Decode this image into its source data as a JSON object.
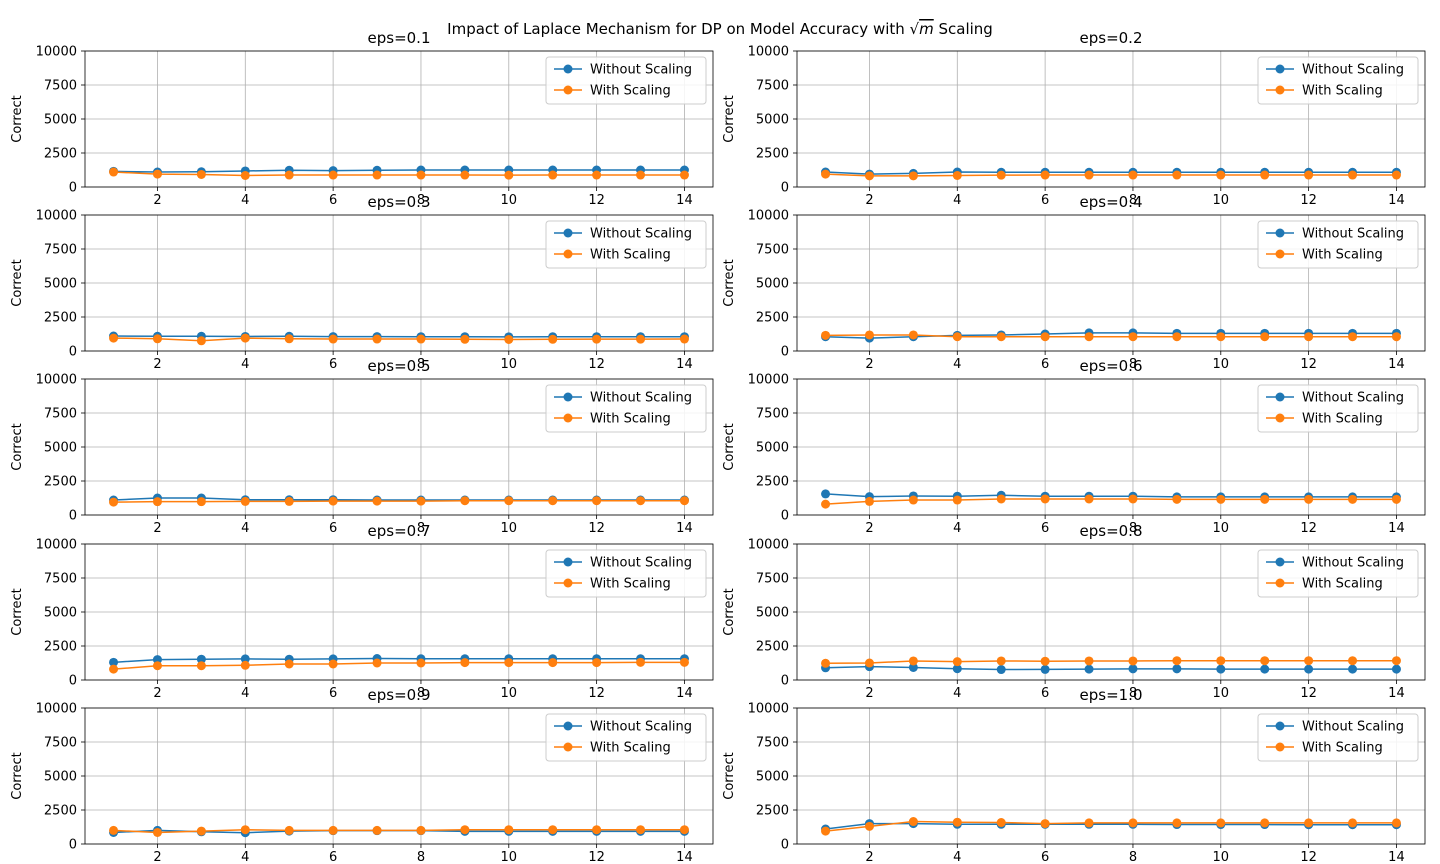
{
  "suptitle": {
    "before": "Impact of Laplace Mechanism for DP on Model Accuracy with ",
    "sqrt_symbol": "√",
    "math_var": "m",
    "after": " Scaling"
  },
  "colors": {
    "without": "#1f77b4",
    "with": "#ff7f0e",
    "grid": "#b0b0b0",
    "axes": "#000000"
  },
  "chart_data": [
    {
      "type": "line",
      "title": "eps=0.1",
      "xlabel": "",
      "ylabel": "Correct",
      "x": [
        1,
        2,
        3,
        4,
        5,
        6,
        7,
        8,
        9,
        10,
        11,
        12,
        13,
        14
      ],
      "xticks": [
        2,
        4,
        6,
        8,
        10,
        12,
        14
      ],
      "xlim": [
        0.35,
        14.65
      ],
      "yticks": [
        0,
        2500,
        5000,
        7500,
        10000
      ],
      "ylim": [
        0,
        10000
      ],
      "grid": true,
      "legend_position": "upper right",
      "series": [
        {
          "name": "Without Scaling",
          "values": [
            1150,
            1100,
            1120,
            1180,
            1230,
            1200,
            1230,
            1250,
            1250,
            1250,
            1250,
            1250,
            1250,
            1250
          ]
        },
        {
          "name": "With Scaling",
          "values": [
            1100,
            950,
            920,
            850,
            880,
            880,
            880,
            880,
            880,
            870,
            880,
            880,
            880,
            880
          ]
        }
      ]
    },
    {
      "type": "line",
      "title": "eps=0.2",
      "xlabel": "",
      "ylabel": "Correct",
      "x": [
        1,
        2,
        3,
        4,
        5,
        6,
        7,
        8,
        9,
        10,
        11,
        12,
        13,
        14
      ],
      "xticks": [
        2,
        4,
        6,
        8,
        10,
        12,
        14
      ],
      "xlim": [
        0.35,
        14.65
      ],
      "yticks": [
        0,
        2500,
        5000,
        7500,
        10000
      ],
      "ylim": [
        0,
        10000
      ],
      "grid": true,
      "legend_position": "upper right",
      "series": [
        {
          "name": "Without Scaling",
          "values": [
            1100,
            950,
            1000,
            1100,
            1080,
            1080,
            1080,
            1080,
            1080,
            1080,
            1080,
            1080,
            1080,
            1080
          ]
        },
        {
          "name": "With Scaling",
          "values": [
            950,
            820,
            820,
            850,
            870,
            880,
            880,
            880,
            880,
            880,
            880,
            880,
            880,
            880
          ]
        }
      ]
    },
    {
      "type": "line",
      "title": "eps=0.3",
      "xlabel": "",
      "ylabel": "Correct",
      "x": [
        1,
        2,
        3,
        4,
        5,
        6,
        7,
        8,
        9,
        10,
        11,
        12,
        13,
        14
      ],
      "xticks": [
        2,
        4,
        6,
        8,
        10,
        12,
        14
      ],
      "xlim": [
        0.35,
        14.65
      ],
      "yticks": [
        0,
        2500,
        5000,
        7500,
        10000
      ],
      "ylim": [
        0,
        10000
      ],
      "grid": true,
      "legend_position": "upper right",
      "series": [
        {
          "name": "Without Scaling",
          "values": [
            1100,
            1080,
            1080,
            1070,
            1080,
            1060,
            1060,
            1050,
            1050,
            1040,
            1050,
            1050,
            1050,
            1050
          ]
        },
        {
          "name": "With Scaling",
          "values": [
            950,
            900,
            750,
            950,
            900,
            880,
            880,
            880,
            860,
            850,
            860,
            870,
            870,
            880
          ]
        }
      ]
    },
    {
      "type": "line",
      "title": "eps=0.4",
      "xlabel": "",
      "ylabel": "Correct",
      "x": [
        1,
        2,
        3,
        4,
        5,
        6,
        7,
        8,
        9,
        10,
        11,
        12,
        13,
        14
      ],
      "xticks": [
        2,
        4,
        6,
        8,
        10,
        12,
        14
      ],
      "xlim": [
        0.35,
        14.65
      ],
      "yticks": [
        0,
        2500,
        5000,
        7500,
        10000
      ],
      "ylim": [
        0,
        10000
      ],
      "grid": true,
      "legend_position": "upper right",
      "series": [
        {
          "name": "Without Scaling",
          "values": [
            1050,
            950,
            1050,
            1150,
            1180,
            1250,
            1330,
            1330,
            1300,
            1300,
            1300,
            1300,
            1300,
            1300
          ]
        },
        {
          "name": "With Scaling",
          "values": [
            1150,
            1180,
            1180,
            1050,
            1050,
            1050,
            1050,
            1050,
            1050,
            1050,
            1050,
            1050,
            1050,
            1050
          ]
        }
      ]
    },
    {
      "type": "line",
      "title": "eps=0.5",
      "xlabel": "",
      "ylabel": "Correct",
      "x": [
        1,
        2,
        3,
        4,
        5,
        6,
        7,
        8,
        9,
        10,
        11,
        12,
        13,
        14
      ],
      "xticks": [
        2,
        4,
        6,
        8,
        10,
        12,
        14
      ],
      "xlim": [
        0.35,
        14.65
      ],
      "yticks": [
        0,
        2500,
        5000,
        7500,
        10000
      ],
      "ylim": [
        0,
        10000
      ],
      "grid": true,
      "legend_position": "upper right",
      "series": [
        {
          "name": "Without Scaling",
          "values": [
            1100,
            1250,
            1250,
            1120,
            1120,
            1120,
            1100,
            1100,
            1100,
            1100,
            1100,
            1100,
            1100,
            1100
          ]
        },
        {
          "name": "With Scaling",
          "values": [
            950,
            980,
            980,
            1000,
            1000,
            1020,
            1020,
            1020,
            1050,
            1050,
            1050,
            1050,
            1050,
            1050
          ]
        }
      ]
    },
    {
      "type": "line",
      "title": "eps=0.6",
      "xlabel": "",
      "ylabel": "Correct",
      "x": [
        1,
        2,
        3,
        4,
        5,
        6,
        7,
        8,
        9,
        10,
        11,
        12,
        13,
        14
      ],
      "xticks": [
        2,
        4,
        6,
        8,
        10,
        12,
        14
      ],
      "xlim": [
        0.35,
        14.65
      ],
      "yticks": [
        0,
        2500,
        5000,
        7500,
        10000
      ],
      "ylim": [
        0,
        10000
      ],
      "grid": true,
      "legend_position": "upper right",
      "series": [
        {
          "name": "Without Scaling",
          "values": [
            1550,
            1350,
            1400,
            1380,
            1450,
            1380,
            1380,
            1380,
            1330,
            1330,
            1330,
            1330,
            1330,
            1330
          ]
        },
        {
          "name": "With Scaling",
          "values": [
            800,
            1000,
            1100,
            1100,
            1180,
            1180,
            1180,
            1180,
            1150,
            1150,
            1150,
            1150,
            1150,
            1150
          ]
        }
      ]
    },
    {
      "type": "line",
      "title": "eps=0.7",
      "xlabel": "",
      "ylabel": "Correct",
      "x": [
        1,
        2,
        3,
        4,
        5,
        6,
        7,
        8,
        9,
        10,
        11,
        12,
        13,
        14
      ],
      "xticks": [
        2,
        4,
        6,
        8,
        10,
        12,
        14
      ],
      "xlim": [
        0.35,
        14.65
      ],
      "yticks": [
        0,
        2500,
        5000,
        7500,
        10000
      ],
      "ylim": [
        0,
        10000
      ],
      "grid": true,
      "legend_position": "upper right",
      "series": [
        {
          "name": "Without Scaling",
          "values": [
            1300,
            1500,
            1530,
            1550,
            1530,
            1550,
            1580,
            1560,
            1560,
            1560,
            1560,
            1560,
            1560,
            1560
          ]
        },
        {
          "name": "With Scaling",
          "values": [
            800,
            1050,
            1050,
            1080,
            1180,
            1180,
            1250,
            1250,
            1280,
            1280,
            1280,
            1280,
            1300,
            1300
          ]
        }
      ]
    },
    {
      "type": "line",
      "title": "eps=0.8",
      "xlabel": "",
      "ylabel": "Correct",
      "x": [
        1,
        2,
        3,
        4,
        5,
        6,
        7,
        8,
        9,
        10,
        11,
        12,
        13,
        14
      ],
      "xticks": [
        2,
        4,
        6,
        8,
        10,
        12,
        14
      ],
      "xlim": [
        0.35,
        14.65
      ],
      "yticks": [
        0,
        2500,
        5000,
        7500,
        10000
      ],
      "ylim": [
        0,
        10000
      ],
      "grid": true,
      "legend_position": "upper right",
      "series": [
        {
          "name": "Without Scaling",
          "values": [
            900,
            980,
            920,
            830,
            770,
            780,
            800,
            820,
            820,
            800,
            800,
            800,
            800,
            800
          ]
        },
        {
          "name": "With Scaling",
          "values": [
            1230,
            1250,
            1400,
            1350,
            1400,
            1380,
            1400,
            1400,
            1420,
            1420,
            1420,
            1420,
            1420,
            1420
          ]
        }
      ]
    },
    {
      "type": "line",
      "title": "eps=0.9",
      "xlabel": "",
      "ylabel": "Correct",
      "x": [
        1,
        2,
        3,
        4,
        5,
        6,
        7,
        8,
        9,
        10,
        11,
        12,
        13,
        14
      ],
      "xticks": [
        2,
        4,
        6,
        8,
        10,
        12,
        14
      ],
      "xlim": [
        0.35,
        14.65
      ],
      "yticks": [
        0,
        2500,
        5000,
        7500,
        10000
      ],
      "ylim": [
        0,
        10000
      ],
      "grid": true,
      "legend_position": "upper right",
      "series": [
        {
          "name": "Without Scaling",
          "values": [
            850,
            1000,
            900,
            830,
            950,
            980,
            980,
            980,
            930,
            930,
            930,
            930,
            930,
            930
          ]
        },
        {
          "name": "With Scaling",
          "values": [
            1000,
            850,
            950,
            1050,
            1000,
            1000,
            1000,
            1000,
            1050,
            1050,
            1050,
            1050,
            1050,
            1050
          ]
        }
      ]
    },
    {
      "type": "line",
      "title": "eps=1.0",
      "xlabel": "",
      "ylabel": "Correct",
      "x": [
        1,
        2,
        3,
        4,
        5,
        6,
        7,
        8,
        9,
        10,
        11,
        12,
        13,
        14
      ],
      "xticks": [
        2,
        4,
        6,
        8,
        10,
        12,
        14
      ],
      "xlim": [
        0.35,
        14.65
      ],
      "yticks": [
        0,
        2500,
        5000,
        7500,
        10000
      ],
      "ylim": [
        0,
        10000
      ],
      "grid": true,
      "legend_position": "upper right",
      "series": [
        {
          "name": "Without Scaling",
          "values": [
            1100,
            1500,
            1500,
            1450,
            1450,
            1450,
            1450,
            1450,
            1430,
            1430,
            1430,
            1420,
            1420,
            1420
          ]
        },
        {
          "name": "With Scaling",
          "values": [
            950,
            1300,
            1650,
            1600,
            1580,
            1500,
            1550,
            1550,
            1550,
            1550,
            1550,
            1550,
            1550,
            1550
          ]
        }
      ]
    }
  ]
}
